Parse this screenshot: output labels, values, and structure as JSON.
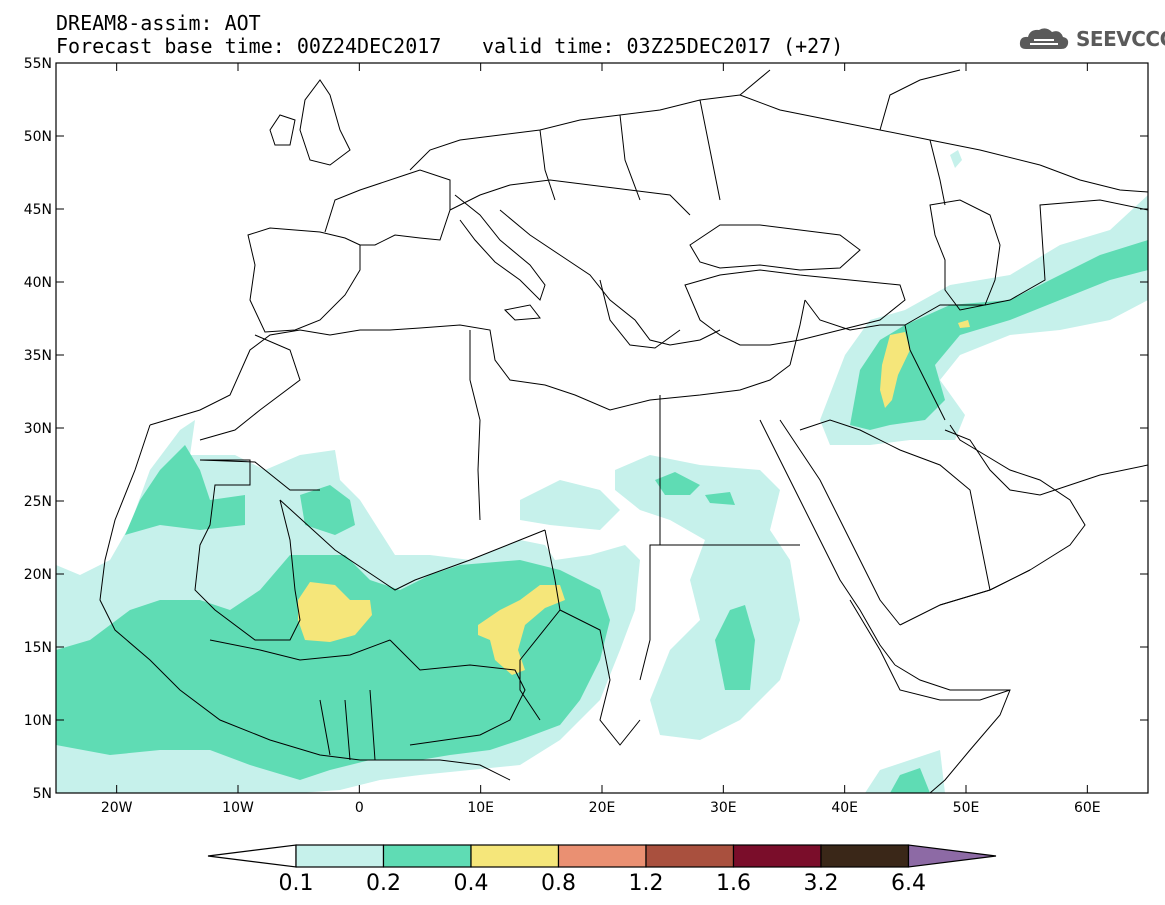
{
  "header": {
    "line1": "DREAM8-assim: AOT",
    "line2": "Forecast base time: 00Z24DEC2017",
    "valid": "valid time: 03Z25DEC2017 (+27)"
  },
  "logo": {
    "text": "SEEVCCC",
    "icon": "cloud-icon"
  },
  "map": {
    "lon_range": [
      -25,
      65
    ],
    "lat_range": [
      5,
      55
    ],
    "lat_ticks": [
      {
        "value": 55,
        "label": "55N"
      },
      {
        "value": 50,
        "label": "50N"
      },
      {
        "value": 45,
        "label": "45N"
      },
      {
        "value": 40,
        "label": "40N"
      },
      {
        "value": 35,
        "label": "35N"
      },
      {
        "value": 30,
        "label": "30N"
      },
      {
        "value": 25,
        "label": "25N"
      },
      {
        "value": 20,
        "label": "20N"
      },
      {
        "value": 15,
        "label": "15N"
      },
      {
        "value": 10,
        "label": "10N"
      },
      {
        "value": 5,
        "label": "5N"
      }
    ],
    "lon_ticks": [
      {
        "value": -20,
        "label": "20W"
      },
      {
        "value": -10,
        "label": "10W"
      },
      {
        "value": 0,
        "label": "0"
      },
      {
        "value": 10,
        "label": "10E"
      },
      {
        "value": 20,
        "label": "20E"
      },
      {
        "value": 30,
        "label": "30E"
      },
      {
        "value": 40,
        "label": "40E"
      },
      {
        "value": 50,
        "label": "50E"
      },
      {
        "value": 60,
        "label": "60E"
      }
    ]
  },
  "legend": {
    "colors": [
      "#ffffff",
      "#c6f1eb",
      "#5fdcb4",
      "#f5e67a",
      "#ea9072",
      "#a9503e",
      "#7a0d2a",
      "#3a2718",
      "#8d6aa5"
    ],
    "labels": [
      "0.1",
      "0.2",
      "0.4",
      "0.8",
      "1.2",
      "1.6",
      "3.2",
      "6.4"
    ]
  }
}
